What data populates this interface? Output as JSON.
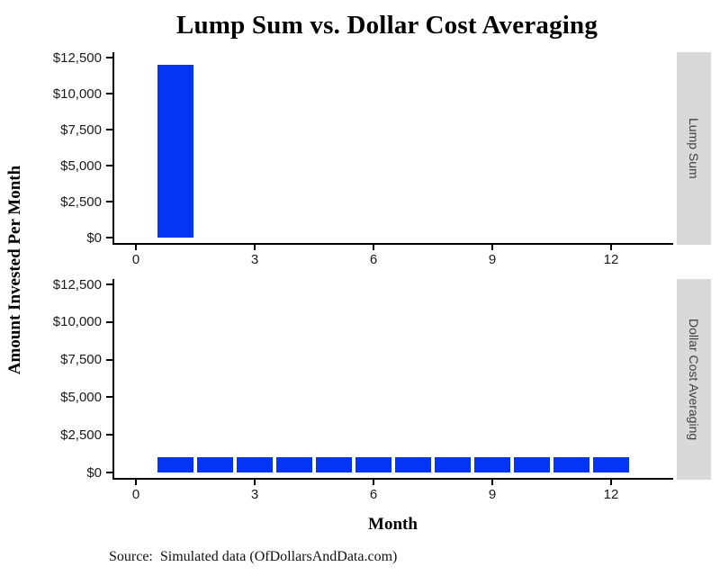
{
  "chart_data": {
    "type": "bar",
    "title": "Lump Sum vs. Dollar Cost Averaging",
    "xlabel": "Month",
    "ylabel": "Amount Invested Per Month",
    "caption": "Source:  Simulated data (OfDollarsAndData.com)",
    "bar_color": "#0435f4",
    "strip_bg": "#d9d9d9",
    "strip_text_color": "#404040",
    "axis_color": "#000000",
    "grid": false,
    "legend": "none",
    "ylim": [
      0,
      12500
    ],
    "y_ticks": {
      "values": [
        0,
        2500,
        5000,
        7500,
        10000,
        12500
      ],
      "labels": [
        "$0",
        "$2,500",
        "$5,000",
        "$7,500",
        "$10,000",
        "$12,500"
      ]
    },
    "x_ticks": {
      "values": [
        0,
        3,
        6,
        9,
        12
      ],
      "labels": [
        "0",
        "3",
        "6",
        "9",
        "12"
      ]
    },
    "bar_width": 0.9,
    "facets": [
      {
        "label": "Lump Sum",
        "months": [
          1
        ],
        "values": [
          12000
        ]
      },
      {
        "label": "Dollar Cost Averaging",
        "months": [
          1,
          2,
          3,
          4,
          5,
          6,
          7,
          8,
          9,
          10,
          11,
          12
        ],
        "values": [
          1000,
          1000,
          1000,
          1000,
          1000,
          1000,
          1000,
          1000,
          1000,
          1000,
          1000,
          1000
        ]
      }
    ]
  }
}
